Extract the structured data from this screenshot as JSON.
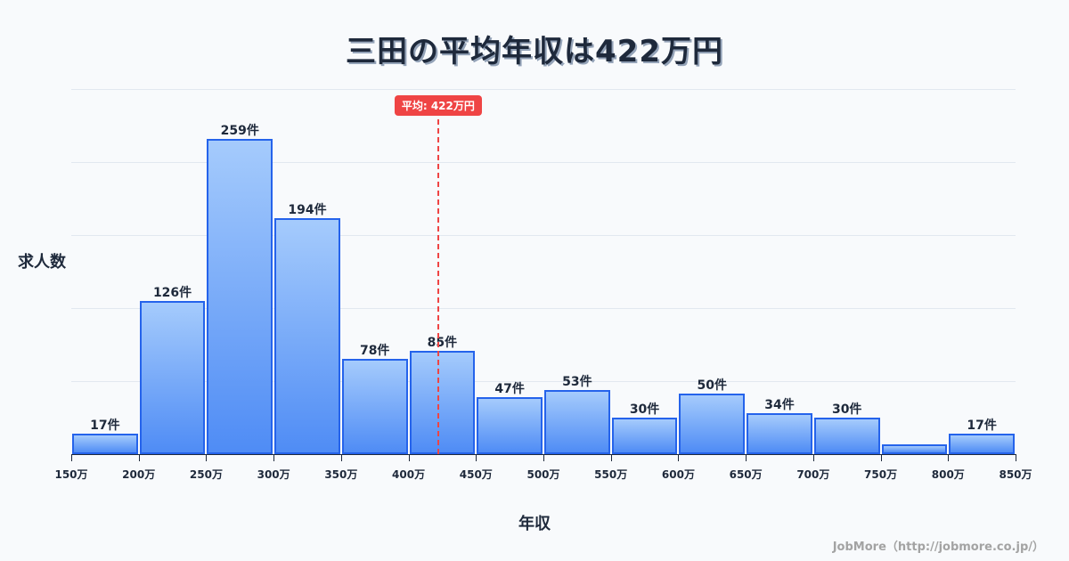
{
  "title": "三田の平均年収は422万円",
  "chart_data": {
    "type": "bar",
    "title": "三田の平均年収は422万円",
    "xlabel": "年収",
    "ylabel": "求人数",
    "categories": [
      "150万-200万",
      "200万-250万",
      "250万-300万",
      "300万-350万",
      "350万-400万",
      "400万-450万",
      "450万-500万",
      "500万-550万",
      "550万-600万",
      "600万-650万",
      "650万-700万",
      "700万-750万",
      "750万-800万",
      "800万-850万"
    ],
    "values": [
      17,
      126,
      259,
      194,
      78,
      85,
      47,
      53,
      30,
      50,
      34,
      30,
      8,
      17
    ],
    "bar_labels": [
      "17件",
      "126件",
      "259件",
      "194件",
      "78件",
      "85件",
      "47件",
      "53件",
      "30件",
      "50件",
      "34件",
      "30件",
      "",
      "17件"
    ],
    "x_ticks": [
      "150万",
      "200万",
      "250万",
      "300万",
      "350万",
      "400万",
      "450万",
      "500万",
      "550万",
      "600万",
      "650万",
      "700万",
      "750万",
      "800万",
      "850万"
    ],
    "x_range": [
      150,
      850
    ],
    "ylim": [
      0,
      300
    ],
    "y_gridlines": [
      60,
      120,
      180,
      240,
      300
    ],
    "grid": true,
    "average": {
      "value": 422,
      "label": "平均: 422万円"
    },
    "colors": {
      "bar_border": "#2563eb",
      "bar_top": "#a5cbfc",
      "bar_bottom": "#4f8cf5",
      "average_line": "#ef4444"
    }
  },
  "credit": "JobMore（http://jobmore.co.jp/）"
}
